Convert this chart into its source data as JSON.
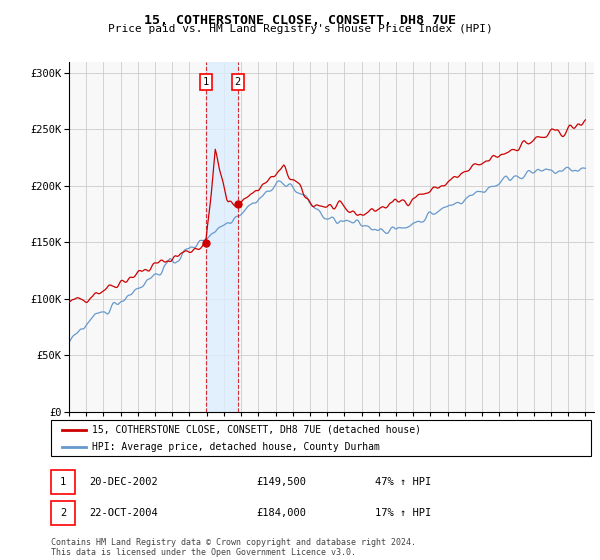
{
  "title": "15, COTHERSTONE CLOSE, CONSETT, DH8 7UE",
  "subtitle": "Price paid vs. HM Land Registry's House Price Index (HPI)",
  "legend_line1": "15, COTHERSTONE CLOSE, CONSETT, DH8 7UE (detached house)",
  "legend_line2": "HPI: Average price, detached house, County Durham",
  "sale1_date": "20-DEC-2002",
  "sale1_price": 149500,
  "sale1_label": "1",
  "sale1_hpi_pct": "47% ↑ HPI",
  "sale2_date": "22-OCT-2004",
  "sale2_price": 184000,
  "sale2_label": "2",
  "sale2_hpi_pct": "17% ↑ HPI",
  "footer": "Contains HM Land Registry data © Crown copyright and database right 2024.\nThis data is licensed under the Open Government Licence v3.0.",
  "ylim": [
    0,
    310000
  ],
  "yticks": [
    0,
    50000,
    100000,
    150000,
    200000,
    250000,
    300000
  ],
  "xmin": 1995,
  "xmax": 2025,
  "sale1_x": 2002.96,
  "sale2_x": 2004.81,
  "red_line_color": "#cc0000",
  "blue_line_color": "#6699cc",
  "shade_color": "#ddeeff",
  "grid_color": "#cccccc",
  "bg_color": "#f8f8f8"
}
